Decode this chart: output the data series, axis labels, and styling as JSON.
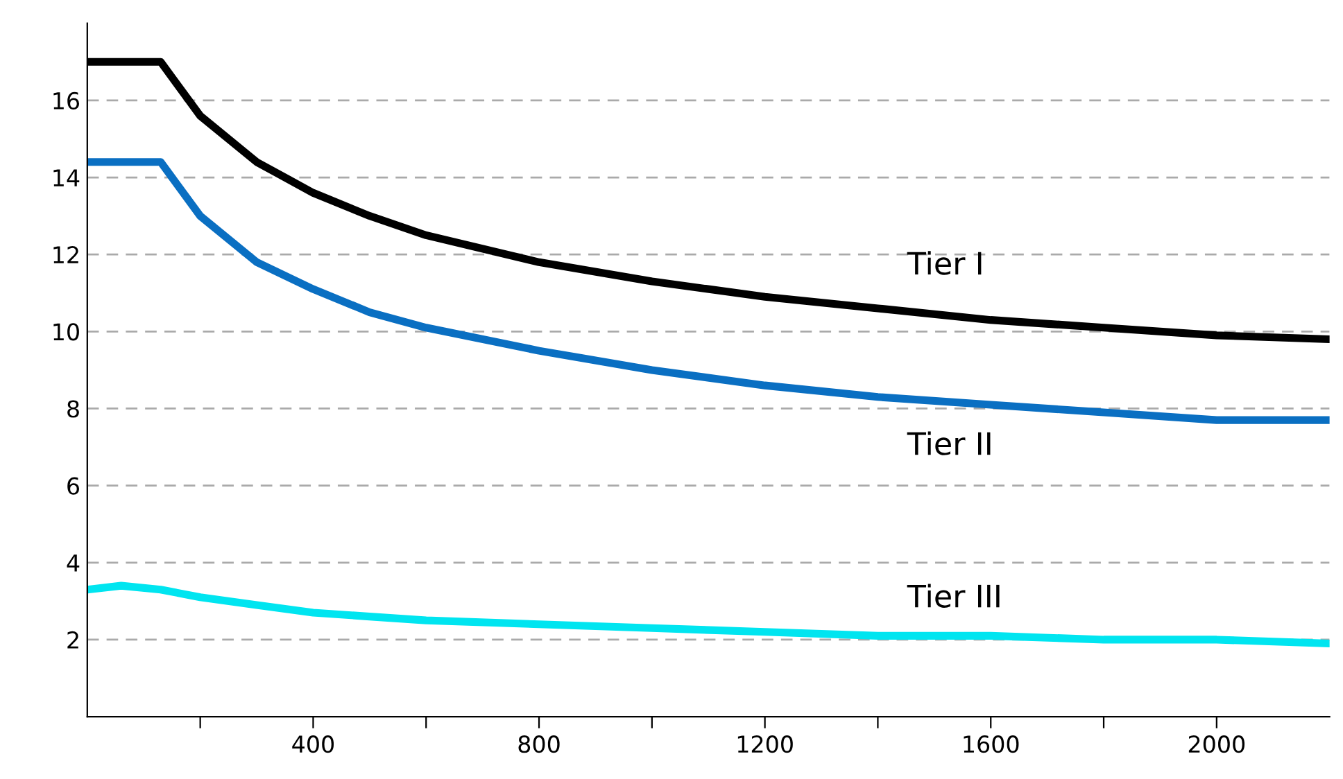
{
  "chart_data": {
    "type": "line",
    "x": [
      0,
      60,
      130,
      200,
      300,
      400,
      500,
      600,
      800,
      1000,
      1200,
      1400,
      1600,
      1800,
      2000,
      2200
    ],
    "series": [
      {
        "color": "#000000",
        "values": [
          17,
          17,
          17,
          15.6,
          14.4,
          13.6,
          13.0,
          12.5,
          11.8,
          11.3,
          10.9,
          10.6,
          10.3,
          10.1,
          9.9,
          9.8
        ]
      },
      {
        "color": "#0a6fc2",
        "values": [
          14.4,
          14.4,
          14.4,
          13.0,
          11.8,
          11.1,
          10.5,
          10.1,
          9.5,
          9.0,
          8.6,
          8.3,
          8.1,
          7.9,
          7.7,
          7.7
        ]
      },
      {
        "color": "#00e5f0",
        "values": [
          3.3,
          3.4,
          3.3,
          3.1,
          2.9,
          2.7,
          2.6,
          2.5,
          2.4,
          2.3,
          2.2,
          2.1,
          2.1,
          2.0,
          2.0,
          1.9
        ]
      }
    ],
    "annotations": [
      "Tier I",
      "Tier II",
      "Tier III"
    ],
    "xlim": [
      0,
      2200
    ],
    "xticks": [
      {
        "value": 200,
        "label": null
      },
      400,
      {
        "value": 600,
        "label": null
      },
      800,
      {
        "value": 1000,
        "label": null
      },
      1200,
      {
        "value": 1400,
        "label": null
      },
      1600,
      {
        "value": 1800,
        "label": null
      },
      2000
    ],
    "ylim": [
      0,
      18
    ],
    "yticks": [
      2,
      4,
      6,
      8,
      10,
      12,
      14,
      16
    ],
    "grid": "y",
    "legend": false,
    "marker": "none",
    "line_style": "solid"
  }
}
